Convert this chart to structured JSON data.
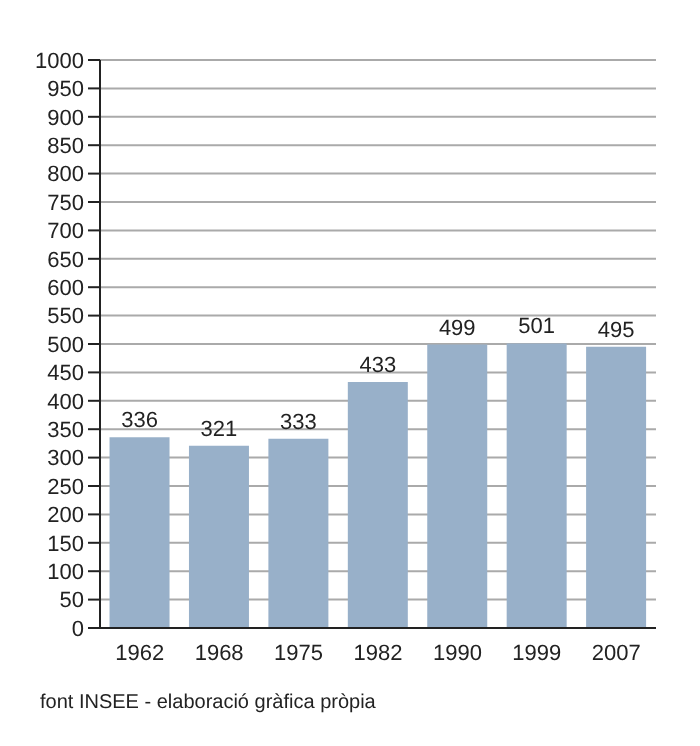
{
  "chart_data": {
    "type": "bar",
    "categories": [
      "1962",
      "1968",
      "1975",
      "1982",
      "1990",
      "1999",
      "2007"
    ],
    "values": [
      336,
      321,
      333,
      433,
      499,
      501,
      495
    ],
    "color": "#98b0c9",
    "data_labels": true,
    "ylim": [
      0,
      1000
    ],
    "yticks": [
      0,
      50,
      100,
      150,
      200,
      250,
      300,
      350,
      400,
      450,
      500,
      550,
      600,
      650,
      700,
      750,
      800,
      850,
      900,
      950,
      1000
    ],
    "grid": "y",
    "annotations": [
      "font INSEE - elaboració gràfica pròpia"
    ]
  }
}
